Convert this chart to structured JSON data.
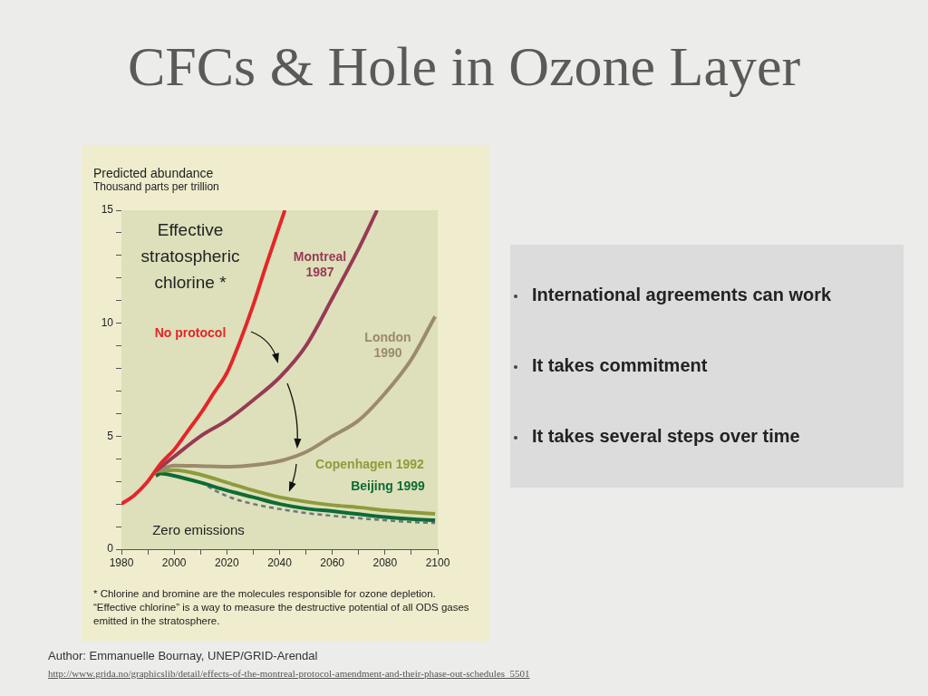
{
  "chart_data": {
    "type": "line",
    "title": "CFCs & Hole in Ozone Layer",
    "ylabel": "Predicted abundance",
    "xlim": [
      1980,
      2100
    ],
    "ylim": [
      0,
      15
    ],
    "xticks": [
      1980,
      {
        "value": 1990,
        "label": null
      },
      2000,
      {
        "value": 2010,
        "label": null
      },
      2020,
      {
        "value": 2030,
        "label": null
      },
      2040,
      {
        "value": 2050,
        "label": null
      },
      2060,
      {
        "value": 2070,
        "label": null
      },
      2080,
      {
        "value": 2090,
        "label": null
      },
      2100
    ],
    "yticks": [
      0,
      {
        "value": 1,
        "label": null
      },
      {
        "value": 2,
        "label": null
      },
      {
        "value": 3,
        "label": null
      },
      {
        "value": 4,
        "label": null
      },
      5,
      {
        "value": 6,
        "label": null
      },
      {
        "value": 7,
        "label": null
      },
      {
        "value": 8,
        "label": null
      },
      {
        "value": 9,
        "label": null
      },
      10,
      {
        "value": 11,
        "label": null
      },
      {
        "value": 12,
        "label": null
      },
      {
        "value": 13,
        "label": null
      },
      {
        "value": 14,
        "label": null
      },
      15
    ],
    "grid": false,
    "marker": "none",
    "series": [
      {
        "name": "No protocol",
        "color": "#e3262a",
        "x": [
          1980,
          1985,
          1990,
          1995,
          2000,
          2005,
          2010,
          2015,
          2020,
          2025,
          2030,
          2035,
          2042
        ],
        "values": [
          2.0,
          2.4,
          3.0,
          3.8,
          4.4,
          5.2,
          6.0,
          6.9,
          7.8,
          9.2,
          10.8,
          12.6,
          15
        ]
      },
      {
        "name": "Montreal 1987",
        "color": "#973a55",
        "x": [
          1993,
          2000,
          2010,
          2020,
          2030,
          2040,
          2050,
          2060,
          2070,
          2077
        ],
        "values": [
          3.45,
          4.1,
          5.0,
          5.7,
          6.6,
          7.6,
          9.0,
          11.1,
          13.3,
          15
        ]
      },
      {
        "name": "London 1990",
        "color": "#9b8a6c",
        "x": [
          1993,
          2000,
          2010,
          2020,
          2030,
          2040,
          2050,
          2060,
          2070,
          2080,
          2090,
          2099
        ],
        "values": [
          3.45,
          3.7,
          3.68,
          3.65,
          3.72,
          3.9,
          4.3,
          5.0,
          5.7,
          6.9,
          8.4,
          10.3
        ]
      },
      {
        "name": "Copenhagen 1992",
        "color": "#8f9b3b",
        "x": [
          1993,
          2000,
          2010,
          2020,
          2030,
          2040,
          2050,
          2060,
          2070,
          2080,
          2090,
          2099
        ],
        "values": [
          3.45,
          3.5,
          3.3,
          2.95,
          2.6,
          2.3,
          2.1,
          1.95,
          1.85,
          1.72,
          1.63,
          1.56
        ]
      },
      {
        "name": "Beijing 1999",
        "color": "#0d6b35",
        "x": [
          1993,
          1995,
          2000,
          2010,
          2020,
          2030,
          2040,
          2050,
          2060,
          2070,
          2080,
          2090,
          2099
        ],
        "values": [
          3.25,
          3.35,
          3.25,
          2.95,
          2.6,
          2.3,
          2.0,
          1.8,
          1.68,
          1.55,
          1.42,
          1.33,
          1.28
        ]
      },
      {
        "name": "Zero emissions",
        "color": "#6b7580",
        "line_style": "dashed",
        "x": [
          2010,
          2020,
          2030,
          2040,
          2050,
          2060,
          2070,
          2080,
          2090,
          2099
        ],
        "values": [
          2.95,
          2.35,
          2.0,
          1.78,
          1.6,
          1.48,
          1.37,
          1.28,
          1.2,
          1.16
        ]
      }
    ],
    "annotations": [
      "Effective stratospheric chlorine *",
      "Thousand parts per trillion",
      "* Chlorine and bromine are the molecules responsible for ozone depletion. “Effective chlorine” is a way to measure the destructive potential of all ODS gases emitted in the stratosphere.",
      "International agreements can work",
      "It takes commitment",
      "It takes several steps over time",
      "Author: Emmanuelle Bournay, UNEP/GRID-Arendal",
      "http://www.grida.no/graphicslib/detail/effects-of-the-montreal-protocol-amendment-and-their-phase-out-schedules_5501"
    ]
  }
}
